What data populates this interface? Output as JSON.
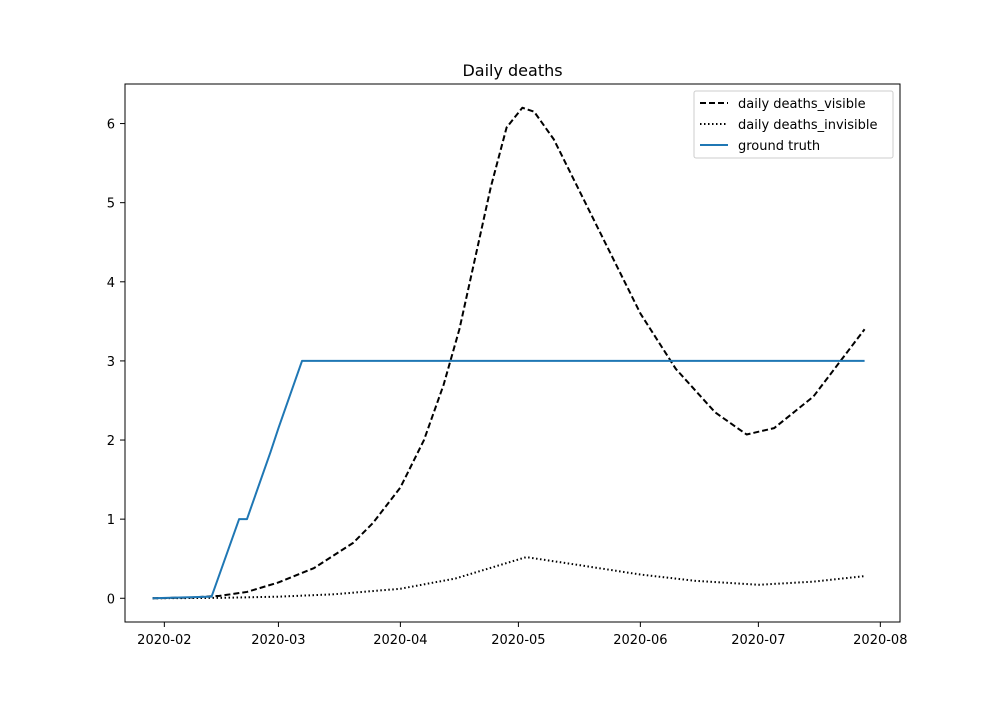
{
  "chart_data": {
    "type": "line",
    "title": "Daily deaths",
    "xlabel": "",
    "ylabel": "",
    "x_axis": "date",
    "xlim": [
      "2020-01-22",
      "2020-08-06"
    ],
    "ylim": [
      -0.3,
      6.5
    ],
    "x_ticks": [
      "2020-02-01",
      "2020-03-01",
      "2020-04-01",
      "2020-05-01",
      "2020-06-01",
      "2020-07-01",
      "2020-08-01"
    ],
    "x_tick_labels": [
      "2020-02",
      "2020-03",
      "2020-04",
      "2020-05",
      "2020-06",
      "2020-07",
      "2020-08"
    ],
    "y_ticks": [
      0,
      1,
      2,
      3,
      4,
      5,
      6
    ],
    "grid": false,
    "legend_position": "top-right",
    "series": [
      {
        "name": "daily deaths_visible",
        "color": "#000000",
        "style": "dashed",
        "points": [
          [
            "2020-01-29",
            0
          ],
          [
            "2020-02-08",
            0.01
          ],
          [
            "2020-02-15",
            0.03
          ],
          [
            "2020-02-22",
            0.08
          ],
          [
            "2020-03-01",
            0.2
          ],
          [
            "2020-03-10",
            0.38
          ],
          [
            "2020-03-20",
            0.7
          ],
          [
            "2020-03-25",
            0.95
          ],
          [
            "2020-04-01",
            1.4
          ],
          [
            "2020-04-07",
            2.0
          ],
          [
            "2020-04-12",
            2.7
          ],
          [
            "2020-04-16",
            3.4
          ],
          [
            "2020-04-20",
            4.3
          ],
          [
            "2020-04-24",
            5.2
          ],
          [
            "2020-04-28",
            5.95
          ],
          [
            "2020-05-02",
            6.2
          ],
          [
            "2020-05-05",
            6.15
          ],
          [
            "2020-05-10",
            5.8
          ],
          [
            "2020-05-20",
            4.8
          ],
          [
            "2020-06-01",
            3.6
          ],
          [
            "2020-06-10",
            2.9
          ],
          [
            "2020-06-20",
            2.35
          ],
          [
            "2020-06-28",
            2.07
          ],
          [
            "2020-07-05",
            2.15
          ],
          [
            "2020-07-15",
            2.55
          ],
          [
            "2020-07-28",
            3.4
          ]
        ]
      },
      {
        "name": "daily deaths_invisible",
        "color": "#000000",
        "style": "dotted",
        "points": [
          [
            "2020-01-29",
            0
          ],
          [
            "2020-02-15",
            0.005
          ],
          [
            "2020-03-01",
            0.02
          ],
          [
            "2020-03-15",
            0.05
          ],
          [
            "2020-04-01",
            0.12
          ],
          [
            "2020-04-15",
            0.25
          ],
          [
            "2020-05-03",
            0.52
          ],
          [
            "2020-05-15",
            0.43
          ],
          [
            "2020-06-01",
            0.3
          ],
          [
            "2020-06-15",
            0.22
          ],
          [
            "2020-07-01",
            0.17
          ],
          [
            "2020-07-15",
            0.21
          ],
          [
            "2020-07-28",
            0.28
          ]
        ]
      },
      {
        "name": "ground truth",
        "color": "#1f77b4",
        "style": "solid",
        "points": [
          [
            "2020-01-29",
            0
          ],
          [
            "2020-02-13",
            0.02
          ],
          [
            "2020-02-20",
            1.0
          ],
          [
            "2020-02-22",
            1.0
          ],
          [
            "2020-02-28",
            1.85
          ],
          [
            "2020-03-01",
            2.15
          ],
          [
            "2020-03-07",
            3.0
          ],
          [
            "2020-07-28",
            3.0
          ]
        ]
      }
    ]
  }
}
